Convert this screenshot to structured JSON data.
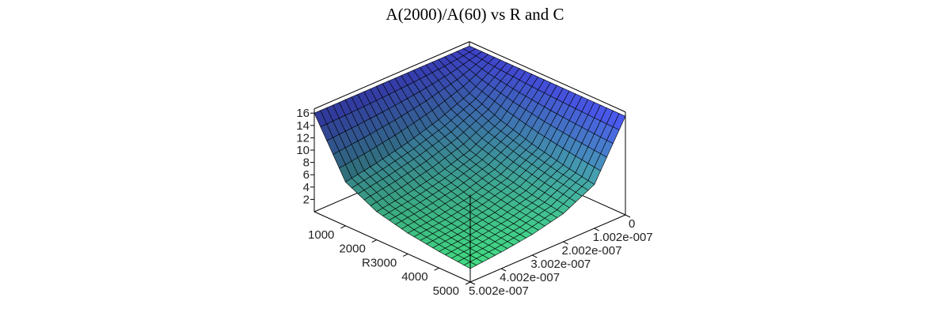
{
  "chart_data": {
    "type": "surface3d",
    "title": "A(2000)/A(60) vs R and C",
    "x_axis": {
      "label": "R",
      "range": [
        0,
        5000
      ],
      "ticks": [
        "1000",
        "2000",
        "3000",
        "4000",
        "5000"
      ],
      "tick_values": [
        1000,
        2000,
        3000,
        4000,
        5000
      ]
    },
    "y_axis": {
      "label": "",
      "range": [
        0,
        5.002e-07
      ],
      "ticks": [
        "0",
        "1.002e-007",
        "2.002e-007",
        "3.002e-007",
        "4.002e-007",
        "5.002e-007"
      ],
      "tick_values": [
        0,
        1.002e-07,
        2.002e-07,
        3.002e-07,
        4.002e-07,
        5.002e-07
      ]
    },
    "z_axis": {
      "label": "",
      "range": [
        0,
        16.7
      ],
      "ticks": [
        "2",
        "4",
        "6",
        "8",
        "10",
        "12",
        "14",
        "16"
      ],
      "tick_values": [
        2,
        4,
        6,
        8,
        10,
        12,
        14,
        16
      ]
    },
    "grid_R": [
      0,
      1000,
      2000,
      3000,
      4000,
      5000
    ],
    "grid_C": [
      0,
      1e-07,
      2e-07,
      3e-07,
      4e-07,
      5e-07
    ],
    "z": [
      [
        16,
        16,
        16,
        16,
        16,
        16
      ],
      [
        16,
        12.8,
        10.67,
        9.14,
        8,
        7.11
      ],
      [
        16,
        10.67,
        8,
        6.4,
        5.33,
        4.57
      ],
      [
        16,
        9.14,
        6.4,
        4.92,
        4,
        3.37
      ],
      [
        16,
        8,
        5.33,
        4,
        3.2,
        2.67
      ],
      [
        16,
        7.11,
        4.57,
        3.37,
        2.67,
        2.19
      ]
    ],
    "colors": {
      "high": "#4a50f0",
      "low": "#40f070",
      "mesh": "#000000"
    }
  }
}
